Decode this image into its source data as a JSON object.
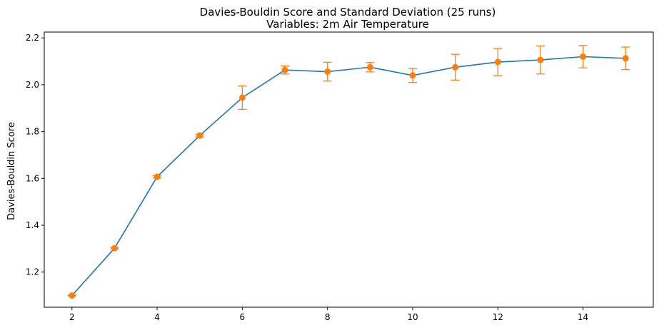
{
  "chart_data": {
    "type": "line",
    "title": "Davies-Bouldin Score and Standard Deviation (25 runs)",
    "subtitle": "Variables: 2m Air Temperature",
    "xlabel": "",
    "ylabel": "Davies-Bouldin Score",
    "xlim": [
      1.35,
      15.65
    ],
    "ylim": [
      1.05,
      2.225
    ],
    "x_ticks": [
      2,
      4,
      6,
      8,
      10,
      12,
      14
    ],
    "y_ticks": [
      1.2,
      1.4,
      1.6,
      1.8,
      2.0,
      2.2
    ],
    "x_tick_labels": [
      "2",
      "4",
      "6",
      "8",
      "10",
      "12",
      "14"
    ],
    "y_tick_labels": [
      "1.2",
      "1.4",
      "1.6",
      "1.8",
      "2.0",
      "2.2"
    ],
    "grid": false,
    "legend": "none",
    "colors": {
      "line": "#1f77b4",
      "points": "#ff7f0e",
      "errorbars": "#ff7f0e",
      "axes": "#000000"
    },
    "series": [
      {
        "x": [
          2,
          3,
          4,
          5,
          6,
          7,
          8,
          9,
          10,
          11,
          12,
          13,
          14,
          15
        ],
        "mean": [
          1.1,
          1.302,
          1.607,
          1.783,
          1.945,
          2.063,
          2.056,
          2.075,
          2.04,
          2.075,
          2.097,
          2.106,
          2.12,
          2.113
        ],
        "std": [
          0.002,
          0.003,
          0.005,
          0.006,
          0.05,
          0.017,
          0.04,
          0.02,
          0.03,
          0.055,
          0.058,
          0.06,
          0.048,
          0.048
        ]
      }
    ]
  }
}
